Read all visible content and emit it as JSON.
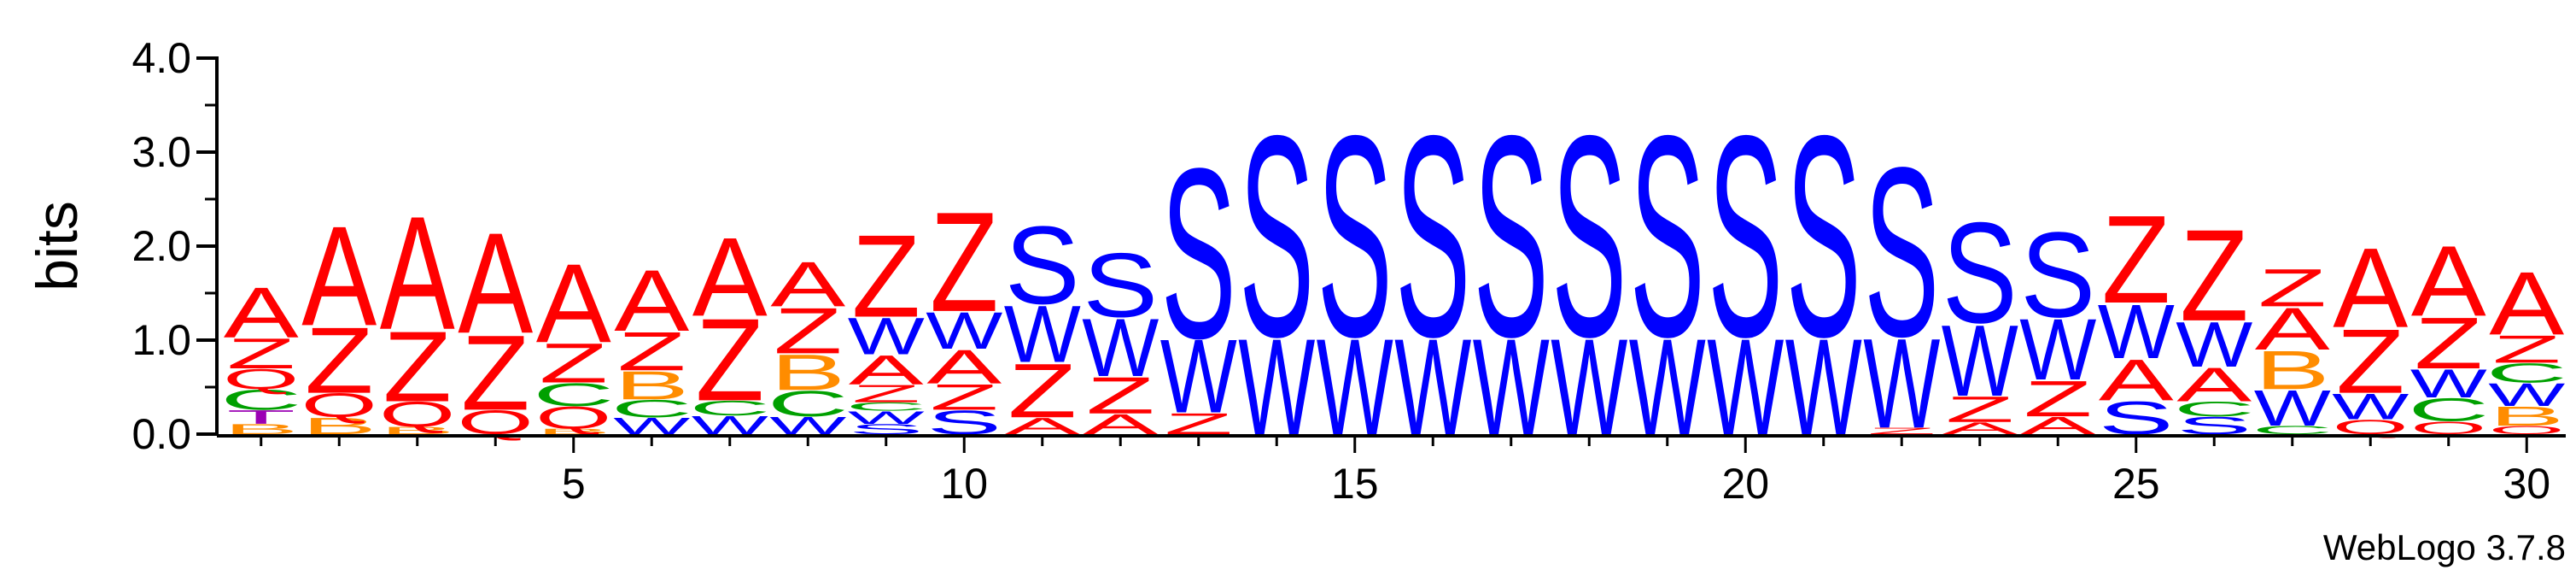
{
  "chart_data": {
    "type": "sequence-logo",
    "ylabel": "bits",
    "ylim": [
      0,
      4.0
    ],
    "y_ticks": [
      {
        "value": 0.0,
        "label": "0.0"
      },
      {
        "value": 1.0,
        "label": "1.0"
      },
      {
        "value": 2.0,
        "label": "2.0"
      },
      {
        "value": 3.0,
        "label": "3.0"
      },
      {
        "value": 4.0,
        "label": "4.0"
      }
    ],
    "x_ticks": [
      {
        "value": 5,
        "label": "5"
      },
      {
        "value": 10,
        "label": "10"
      },
      {
        "value": 15,
        "label": "15"
      },
      {
        "value": 20,
        "label": "20"
      },
      {
        "value": 25,
        "label": "25"
      },
      {
        "value": 30,
        "label": "30"
      }
    ],
    "x_range": [
      1,
      30
    ],
    "colors": {
      "A": "#ff0000",
      "Z": "#ff0000",
      "Q": "#ff0000",
      "E": "#ff0000",
      "S": "#0000ff",
      "W": "#0000ff",
      "C": "#00a000",
      "B": "#ff8c00",
      "T": "#9b00b4"
    },
    "positions": [
      {
        "pos": 1,
        "stack": [
          {
            "l": "B",
            "h": 0.11
          },
          {
            "l": "T",
            "h": 0.15
          },
          {
            "l": "C",
            "h": 0.22
          },
          {
            "l": "Q",
            "h": 0.22
          },
          {
            "l": "Z",
            "h": 0.33
          },
          {
            "l": "A",
            "h": 0.55
          }
        ]
      },
      {
        "pos": 2,
        "stack": [
          {
            "l": "B",
            "h": 0.18
          },
          {
            "l": "Q",
            "h": 0.26
          },
          {
            "l": "Z",
            "h": 0.72
          },
          {
            "l": "A",
            "h": 1.09
          }
        ]
      },
      {
        "pos": 3,
        "stack": [
          {
            "l": "B",
            "h": 0.08
          },
          {
            "l": "Q",
            "h": 0.27
          },
          {
            "l": "Z",
            "h": 0.77
          },
          {
            "l": "A",
            "h": 1.24
          }
        ]
      },
      {
        "pos": 4,
        "stack": [
          {
            "l": "Q",
            "h": 0.26
          },
          {
            "l": "Z",
            "h": 0.82
          },
          {
            "l": "A",
            "h": 1.1
          }
        ]
      },
      {
        "pos": 5,
        "stack": [
          {
            "l": "B",
            "h": 0.06
          },
          {
            "l": "Q",
            "h": 0.24
          },
          {
            "l": "C",
            "h": 0.25
          },
          {
            "l": "Z",
            "h": 0.43
          },
          {
            "l": "A",
            "h": 0.86
          }
        ]
      },
      {
        "pos": 6,
        "stack": [
          {
            "l": "W",
            "h": 0.18
          },
          {
            "l": "C",
            "h": 0.19
          },
          {
            "l": "B",
            "h": 0.31
          },
          {
            "l": "Z",
            "h": 0.42
          },
          {
            "l": "A",
            "h": 0.67
          }
        ]
      },
      {
        "pos": 7,
        "stack": [
          {
            "l": "W",
            "h": 0.2
          },
          {
            "l": "C",
            "h": 0.16
          },
          {
            "l": "Z",
            "h": 0.9
          },
          {
            "l": "A",
            "h": 0.86
          }
        ]
      },
      {
        "pos": 8,
        "stack": [
          {
            "l": "W",
            "h": 0.19
          },
          {
            "l": "C",
            "h": 0.28
          },
          {
            "l": "B",
            "h": 0.39
          },
          {
            "l": "Z",
            "h": 0.5
          },
          {
            "l": "A",
            "h": 0.49
          }
        ]
      },
      {
        "pos": 9,
        "stack": [
          {
            "l": "S",
            "h": 0.11
          },
          {
            "l": "W",
            "h": 0.14
          },
          {
            "l": "C",
            "h": 0.09
          },
          {
            "l": "Z",
            "h": 0.19
          },
          {
            "l": "A",
            "h": 0.32
          },
          {
            "l": "W2",
            "h": 0.4
          },
          {
            "l": "Z2",
            "h": 0.9
          }
        ]
      },
      {
        "pos": 10,
        "stack": [
          {
            "l": "S",
            "h": 0.26
          },
          {
            "l": "Z",
            "h": 0.28
          },
          {
            "l": "A",
            "h": 0.37
          },
          {
            "l": "W",
            "h": 0.4
          },
          {
            "l": "Z2",
            "h": 1.09
          }
        ]
      },
      {
        "pos": 11,
        "stack": [
          {
            "l": "A",
            "h": 0.18
          },
          {
            "l": "Z",
            "h": 0.59
          },
          {
            "l": "W",
            "h": 0.62
          },
          {
            "l": "S",
            "h": 0.85
          }
        ]
      },
      {
        "pos": 12,
        "stack": [
          {
            "l": "A",
            "h": 0.22
          },
          {
            "l": "Z",
            "h": 0.4
          },
          {
            "l": "W",
            "h": 0.63
          },
          {
            "l": "S",
            "h": 0.7
          }
        ]
      },
      {
        "pos": 13,
        "stack": [
          {
            "l": "Z",
            "h": 0.23
          },
          {
            "l": "W",
            "h": 0.8
          },
          {
            "l": "S",
            "h": 1.86
          }
        ]
      },
      {
        "pos": 14,
        "stack": [
          {
            "l": "W",
            "h": 1.05
          },
          {
            "l": "S",
            "h": 2.2
          }
        ]
      },
      {
        "pos": 15,
        "stack": [
          {
            "l": "W",
            "h": 1.05
          },
          {
            "l": "S",
            "h": 2.2
          }
        ]
      },
      {
        "pos": 16,
        "stack": [
          {
            "l": "W",
            "h": 1.05
          },
          {
            "l": "S",
            "h": 2.2
          }
        ]
      },
      {
        "pos": 17,
        "stack": [
          {
            "l": "W",
            "h": 1.05
          },
          {
            "l": "S",
            "h": 2.2
          }
        ]
      },
      {
        "pos": 18,
        "stack": [
          {
            "l": "W",
            "h": 1.05
          },
          {
            "l": "S",
            "h": 2.2
          }
        ]
      },
      {
        "pos": 19,
        "stack": [
          {
            "l": "W",
            "h": 1.05
          },
          {
            "l": "S",
            "h": 2.2
          }
        ]
      },
      {
        "pos": 20,
        "stack": [
          {
            "l": "W",
            "h": 1.05
          },
          {
            "l": "S",
            "h": 2.2
          }
        ]
      },
      {
        "pos": 21,
        "stack": [
          {
            "l": "W",
            "h": 1.05
          },
          {
            "l": "S",
            "h": 2.2
          }
        ]
      },
      {
        "pos": 22,
        "stack": [
          {
            "l": "Z",
            "h": 0.07
          },
          {
            "l": "W",
            "h": 0.98
          },
          {
            "l": "S",
            "h": 1.85
          }
        ]
      },
      {
        "pos": 23,
        "stack": [
          {
            "l": "A",
            "h": 0.13
          },
          {
            "l": "Z",
            "h": 0.28
          },
          {
            "l": "W",
            "h": 0.78
          },
          {
            "l": "S",
            "h": 1.1
          }
        ]
      },
      {
        "pos": 24,
        "stack": [
          {
            "l": "A",
            "h": 0.19
          },
          {
            "l": "Z",
            "h": 0.39
          },
          {
            "l": "W",
            "h": 0.67
          },
          {
            "l": "S",
            "h": 0.93
          }
        ]
      },
      {
        "pos": 25,
        "stack": [
          {
            "l": "S",
            "h": 0.36
          },
          {
            "l": "A",
            "h": 0.45
          },
          {
            "l": "W",
            "h": 0.59
          },
          {
            "l": "Z",
            "h": 0.96
          }
        ]
      },
      {
        "pos": 26,
        "stack": [
          {
            "l": "S",
            "h": 0.19
          },
          {
            "l": "C",
            "h": 0.16
          },
          {
            "l": "A",
            "h": 0.37
          },
          {
            "l": "W",
            "h": 0.49
          },
          {
            "l": "Z",
            "h": 1.0
          }
        ]
      },
      {
        "pos": 27,
        "stack": [
          {
            "l": "C",
            "h": 0.09
          },
          {
            "l": "W",
            "h": 0.39
          },
          {
            "l": "B",
            "h": 0.42
          },
          {
            "l": "A",
            "h": 0.46
          },
          {
            "l": "Z",
            "h": 0.41
          }
        ]
      },
      {
        "pos": 28,
        "stack": [
          {
            "l": "Q",
            "h": 0.16
          },
          {
            "l": "W",
            "h": 0.28
          },
          {
            "l": "Z",
            "h": 0.7
          },
          {
            "l": "A",
            "h": 0.87
          }
        ]
      },
      {
        "pos": 29,
        "stack": [
          {
            "l": "Q",
            "h": 0.14
          },
          {
            "l": "C",
            "h": 0.25
          },
          {
            "l": "W",
            "h": 0.31
          },
          {
            "l": "Z",
            "h": 0.56
          },
          {
            "l": "A",
            "h": 0.77
          }
        ]
      },
      {
        "pos": 30,
        "stack": [
          {
            "l": "Q",
            "h": 0.09
          },
          {
            "l": "B",
            "h": 0.21
          },
          {
            "l": "W",
            "h": 0.25
          },
          {
            "l": "C",
            "h": 0.21
          },
          {
            "l": "Z",
            "h": 0.3
          },
          {
            "l": "A",
            "h": 0.69
          }
        ]
      }
    ]
  },
  "footer": {
    "brand": "WebLogo 3.7.8"
  }
}
